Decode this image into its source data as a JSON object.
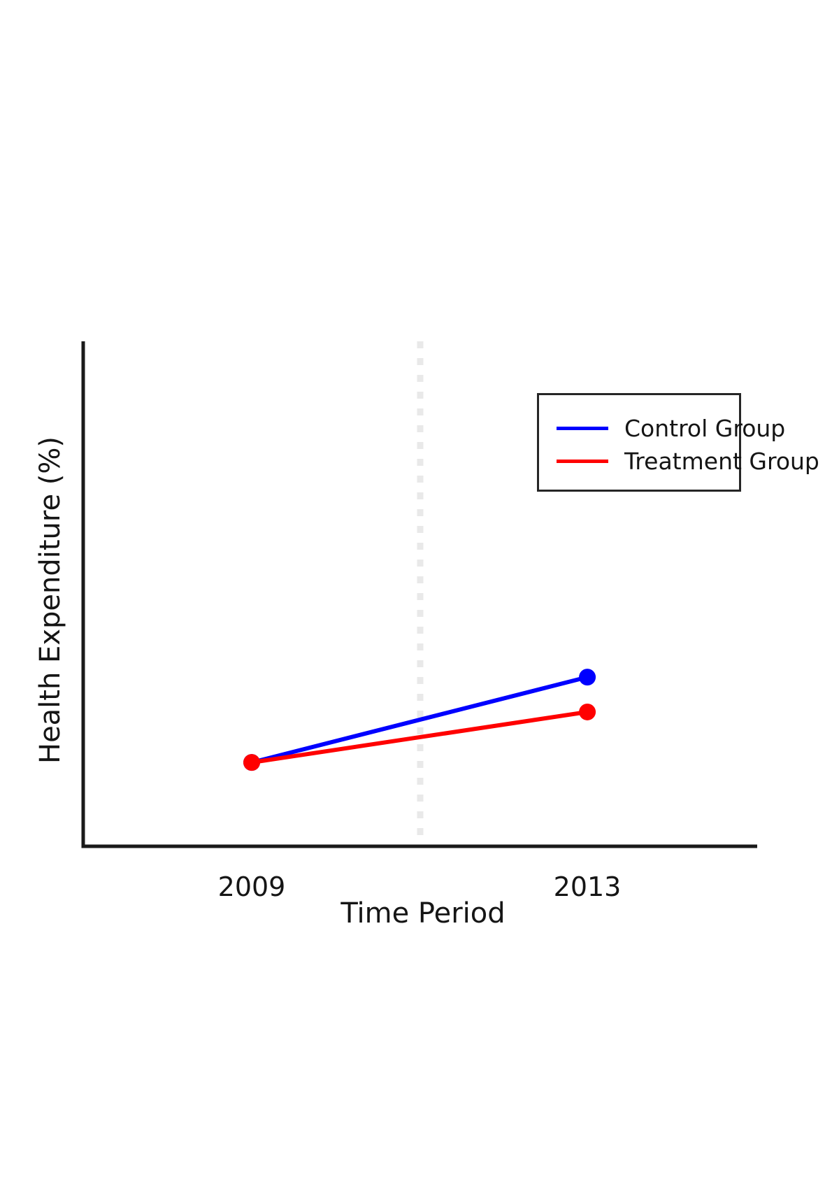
{
  "chart_data": {
    "type": "line",
    "title": "",
    "xlabel": "Time Period",
    "ylabel": "Health Expenditure (%)",
    "categories": [
      "2009",
      "2013"
    ],
    "series": [
      {
        "name": "Control Group",
        "color": "#0000ff",
        "values_fraction_of_plot_height": [
          0.166,
          0.335
        ],
        "markers": true
      },
      {
        "name": "Treatment Group",
        "color": "#ff0000",
        "values_fraction_of_plot_height": [
          0.166,
          0.266
        ],
        "markers": true
      }
    ],
    "y_axis": {
      "ticks_visible": false,
      "note": "no numeric y tick labels are shown in the figure; series values are recorded as fractions of the plot height above the x-axis"
    },
    "x_positions_fraction_of_plot_width": [
      0.25,
      0.748
    ],
    "reference_line": {
      "x_fraction": 0.5,
      "style": "dashed",
      "color": "#e9e9e9",
      "meaning": "vertical divider between the two time periods"
    },
    "legend": {
      "position": "upper-right",
      "border": true,
      "entries": [
        "Control Group",
        "Treatment Group"
      ]
    },
    "grid": false,
    "axis_color": "#1a1a1a",
    "background_color": "#ffffff"
  }
}
